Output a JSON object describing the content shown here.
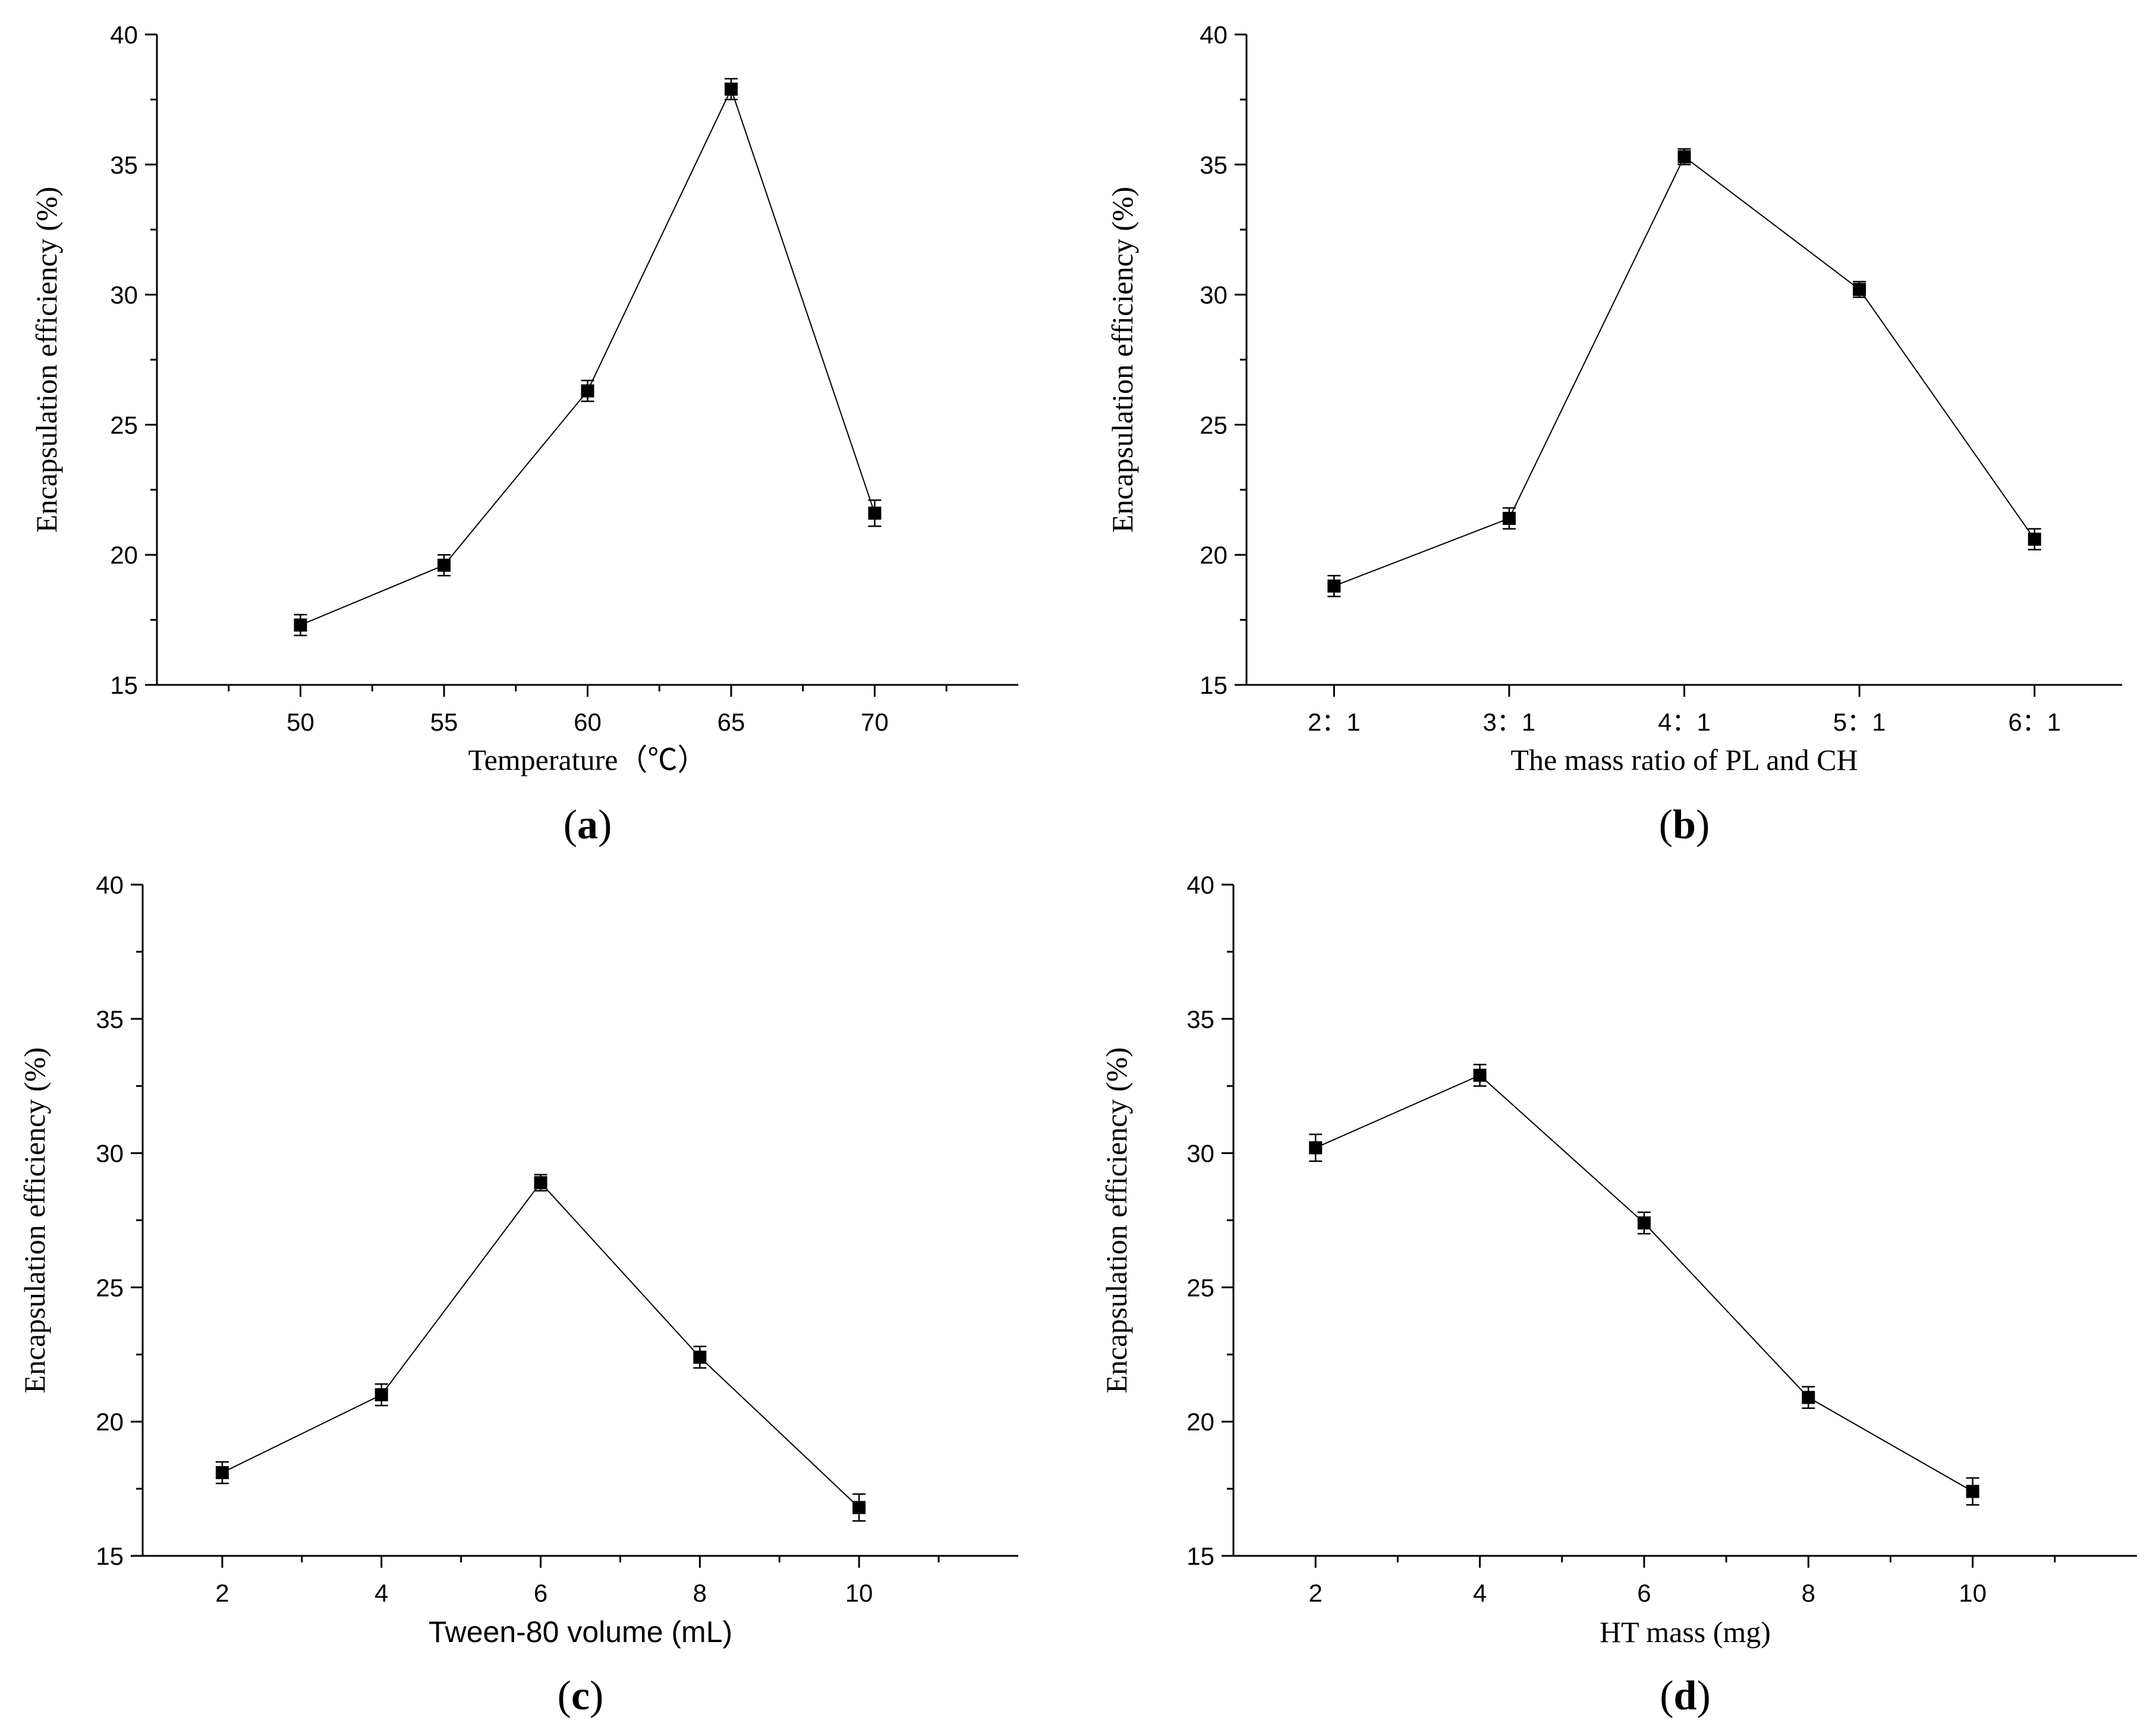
{
  "chart_data": [
    {
      "panel": "(a)",
      "type": "line",
      "x": [
        50,
        55,
        60,
        65,
        70
      ],
      "xticks": [
        "50",
        "55",
        "60",
        "65",
        "70"
      ],
      "series": [
        {
          "values": [
            17.3,
            19.6,
            26.3,
            37.9,
            21.6
          ],
          "error": [
            0.4,
            0.4,
            0.4,
            0.4,
            0.5
          ]
        }
      ],
      "xlabel": "Temperature（℃）",
      "ylabel": "Encapsulation efficiency (%)",
      "xlim": [
        45,
        75
      ],
      "ylim": [
        15,
        40
      ],
      "yticks": [
        "15",
        "20",
        "25",
        "30",
        "35",
        "40"
      ],
      "marker": "square"
    },
    {
      "panel": "(b)",
      "type": "line",
      "x": [
        1,
        2,
        3,
        4,
        5
      ],
      "xticks": [
        "2：1",
        "3：1",
        "4：1",
        "5：1",
        "6：1"
      ],
      "series": [
        {
          "values": [
            18.8,
            21.4,
            35.3,
            30.2,
            20.6
          ],
          "error": [
            0.4,
            0.4,
            0.3,
            0.3,
            0.4
          ]
        }
      ],
      "xlabel": "The mass ratio of PL and CH",
      "ylabel": "Encapsulation efficiency (%)",
      "xlim": [
        0.5,
        5.5
      ],
      "ylim": [
        15,
        40
      ],
      "yticks": [
        "15",
        "20",
        "25",
        "30",
        "35",
        "40"
      ],
      "marker": "square"
    },
    {
      "panel": "(c)",
      "type": "line",
      "x": [
        2,
        4,
        6,
        8,
        10
      ],
      "xticks": [
        "2",
        "4",
        "6",
        "8",
        "10"
      ],
      "series": [
        {
          "values": [
            18.1,
            21.0,
            28.9,
            22.4,
            16.8
          ],
          "error": [
            0.4,
            0.4,
            0.3,
            0.4,
            0.5
          ]
        }
      ],
      "xlabel": "Tween-80 volume (mL)",
      "ylabel": "Encapsulation efficiency (%)",
      "xlim": [
        1,
        12
      ],
      "ylim": [
        15,
        40
      ],
      "yticks": [
        "15",
        "20",
        "25",
        "30",
        "35",
        "40"
      ],
      "marker": "square"
    },
    {
      "panel": "(d)",
      "type": "line",
      "x": [
        2,
        4,
        6,
        8,
        10
      ],
      "xticks": [
        "2",
        "4",
        "6",
        "8",
        "10"
      ],
      "series": [
        {
          "values": [
            30.2,
            32.9,
            27.4,
            20.9,
            17.4
          ],
          "error": [
            0.5,
            0.4,
            0.4,
            0.4,
            0.5
          ]
        }
      ],
      "xlabel": "HT mass (mg)",
      "ylabel": "Encapsulation efficiency (%)",
      "xlim": [
        1,
        12
      ],
      "ylim": [
        15,
        40
      ],
      "yticks": [
        "15",
        "20",
        "25",
        "30",
        "35",
        "40"
      ],
      "marker": "square"
    }
  ]
}
